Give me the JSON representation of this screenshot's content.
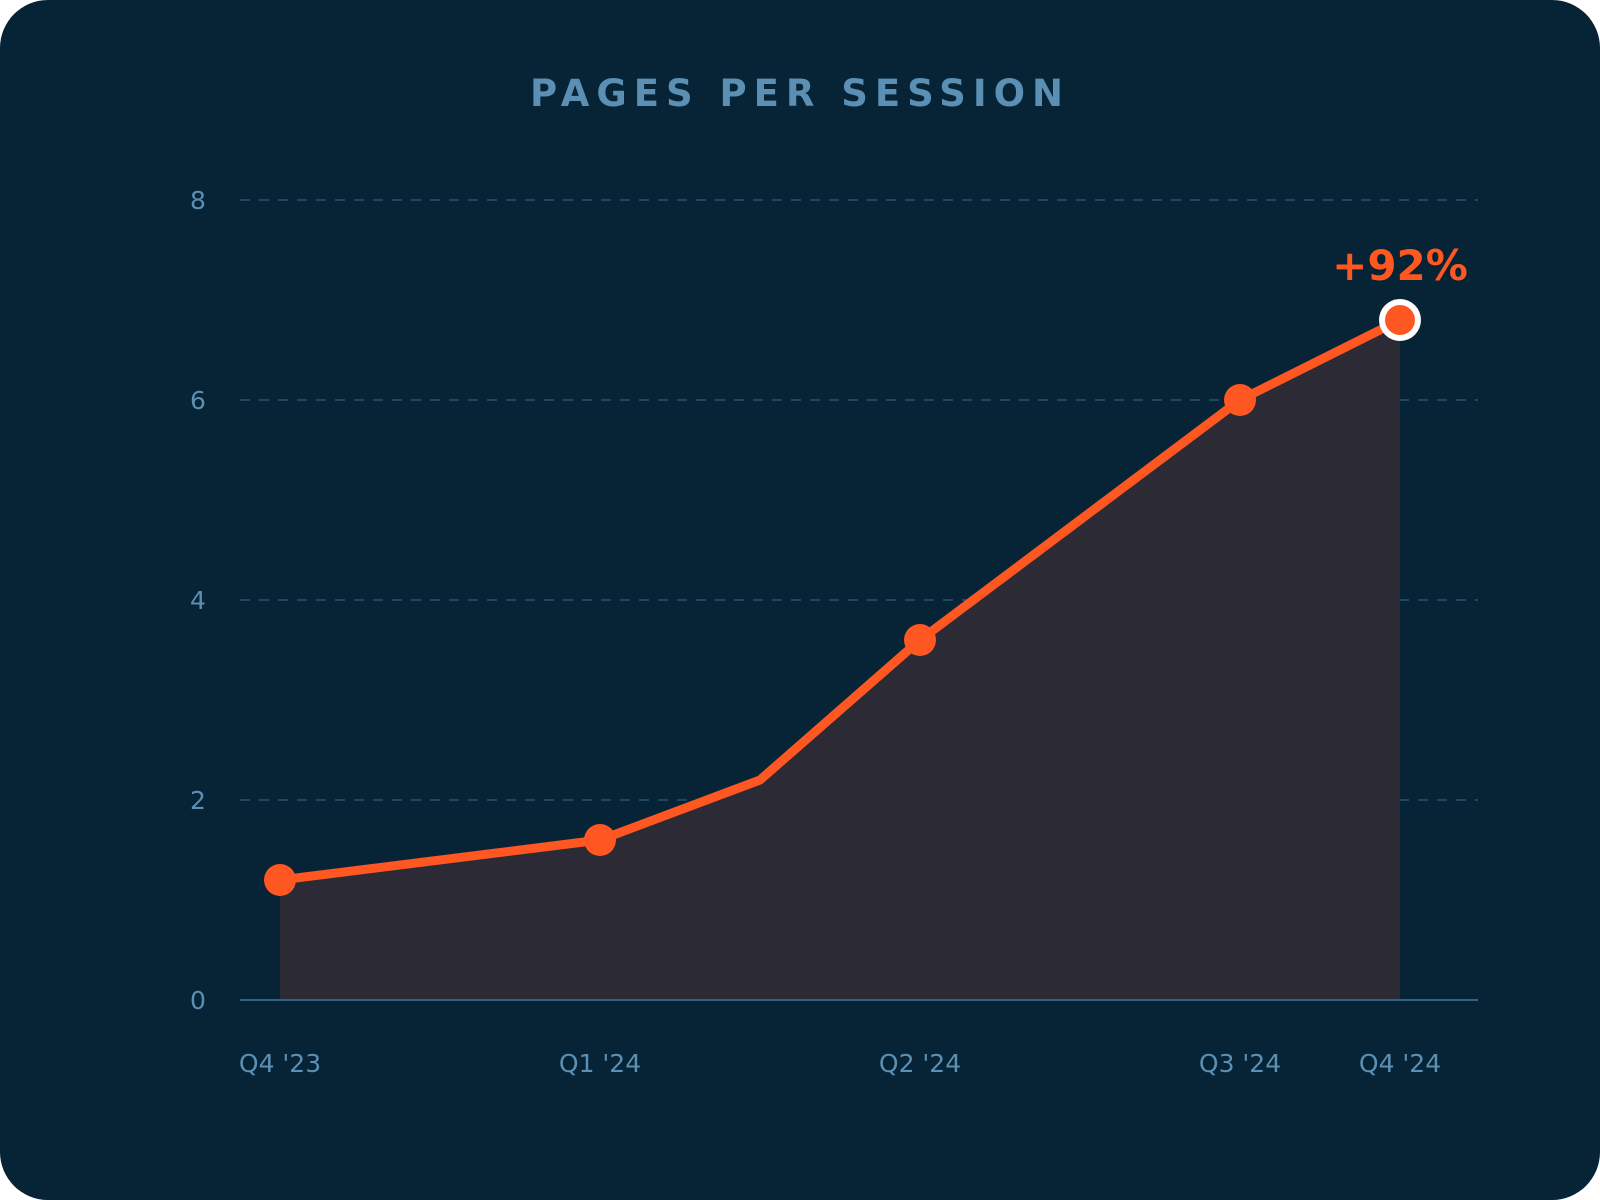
{
  "chart_data": {
    "type": "area",
    "title": "PAGES PER SESSION",
    "xlabel": "",
    "ylabel": "",
    "categories": [
      "Q4 '23",
      "Q1 '24",
      "Q2 '24",
      "Q3 '24",
      "Q4 '24"
    ],
    "x": [
      0,
      1,
      1.5,
      2,
      3,
      3.5
    ],
    "values": [
      1.2,
      1.6,
      2.2,
      3.6,
      6.0,
      6.8
    ],
    "markers": [
      true,
      true,
      false,
      true,
      true,
      true
    ],
    "ylim": [
      0,
      8
    ],
    "yticks": [
      0,
      2,
      4,
      6,
      8
    ],
    "grid": true,
    "legend": "none",
    "annotation": {
      "text": "+92%",
      "x": 3.5,
      "y": 6.8
    },
    "colors": {
      "line": "#ff5722",
      "fill": "#2b2a35",
      "grid": "#2a5270",
      "axis": "#2f6285",
      "text": "#5b8fb3",
      "background": "#072336",
      "highlight_ring": "#ffffff"
    }
  }
}
